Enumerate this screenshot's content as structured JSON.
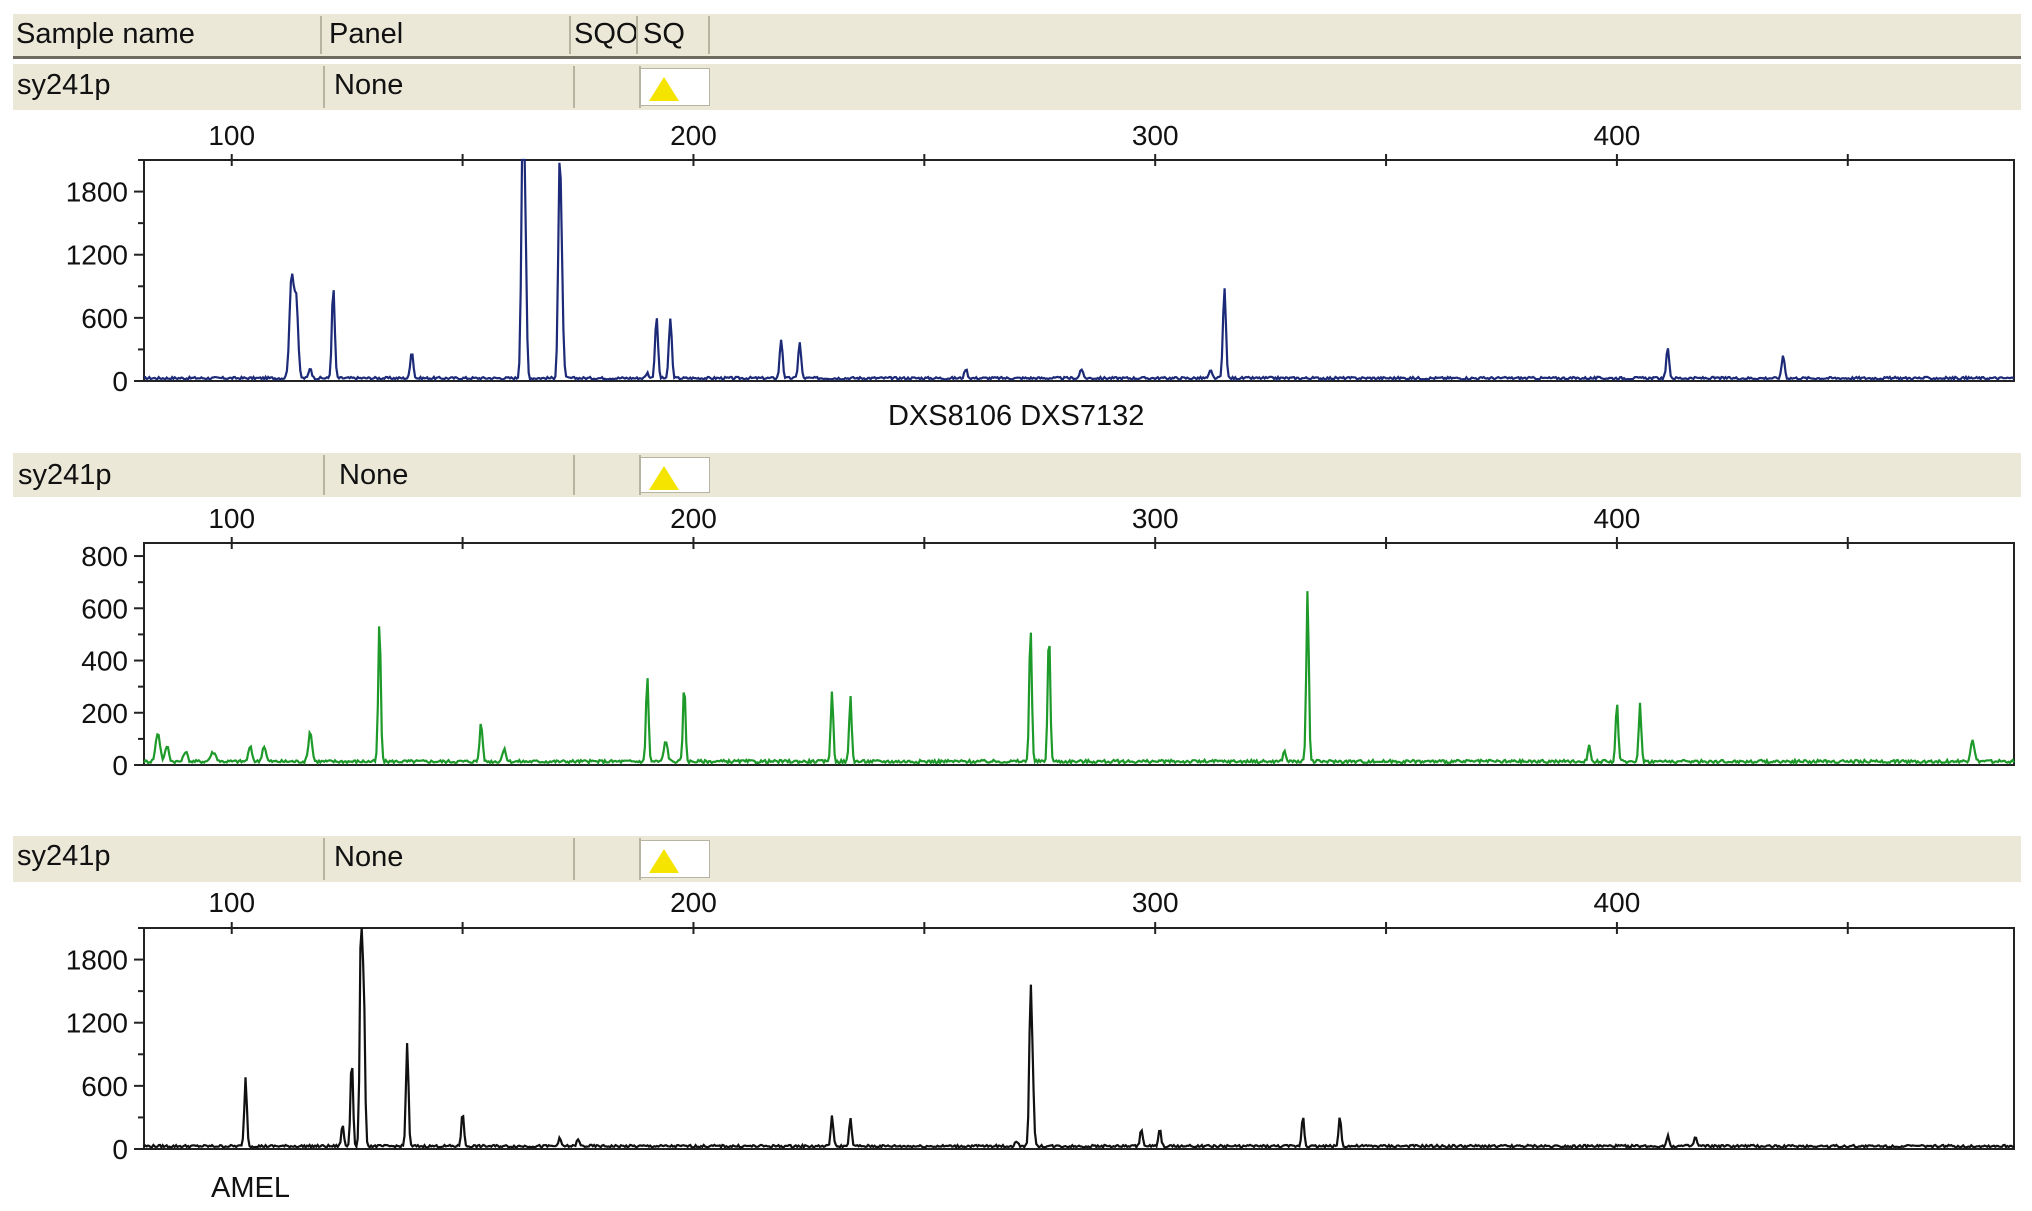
{
  "header": {
    "columns": [
      "Sample name",
      "Panel",
      "SQO",
      "SQ"
    ]
  },
  "panels": [
    {
      "sample_name": "sy241p",
      "panel": "None",
      "sq_icon": "warning-triangle-icon",
      "marker_labels": "DXS8106 DXS7132",
      "color": "#1c2a78"
    },
    {
      "sample_name": "sy241p",
      "panel": "None",
      "sq_icon": "warning-triangle-icon",
      "marker_labels": "",
      "color": "#1e9a2a"
    },
    {
      "sample_name": "sy241p",
      "panel": "None",
      "sq_icon": "warning-triangle-icon",
      "marker_labels": "AMEL",
      "color": "#111111"
    }
  ],
  "colors": {
    "header_bg": "#ece8d8",
    "sq_icon": "#f5e400"
  },
  "chart_data": [
    {
      "type": "line",
      "xlabel": "",
      "ylabel": "",
      "xlim": [
        81,
        486
      ],
      "ylim": [
        0,
        2100
      ],
      "x_ticks": [
        100,
        200,
        300,
        400
      ],
      "y_ticks": [
        0,
        600,
        1200,
        1800
      ],
      "grid": false,
      "baseline": 30,
      "series": [
        {
          "peaks": [
            {
              "x": 113,
              "y": 980,
              "w": 1.2
            },
            {
              "x": 114,
              "y": 700,
              "w": 1.0
            },
            {
              "x": 117,
              "y": 100,
              "w": 0.8
            },
            {
              "x": 122,
              "y": 860,
              "w": 0.8
            },
            {
              "x": 139,
              "y": 260,
              "w": 0.8
            },
            {
              "x": 163,
              "y": 2080,
              "w": 0.8
            },
            {
              "x": 163.5,
              "y": 1500,
              "w": 0.8
            },
            {
              "x": 171,
              "y": 1880,
              "w": 0.8
            },
            {
              "x": 171.5,
              "y": 750,
              "w": 0.8
            },
            {
              "x": 190,
              "y": 50,
              "w": 0.8
            },
            {
              "x": 192,
              "y": 580,
              "w": 0.8
            },
            {
              "x": 195,
              "y": 570,
              "w": 0.8
            },
            {
              "x": 219,
              "y": 370,
              "w": 0.8
            },
            {
              "x": 223,
              "y": 340,
              "w": 0.8
            },
            {
              "x": 259,
              "y": 90,
              "w": 0.8
            },
            {
              "x": 284,
              "y": 90,
              "w": 0.8
            },
            {
              "x": 312,
              "y": 70,
              "w": 0.8
            },
            {
              "x": 315,
              "y": 870,
              "w": 0.8
            },
            {
              "x": 411,
              "y": 280,
              "w": 0.8
            },
            {
              "x": 436,
              "y": 220,
              "w": 0.8
            }
          ]
        }
      ]
    },
    {
      "type": "line",
      "xlabel": "",
      "ylabel": "",
      "xlim": [
        81,
        486
      ],
      "ylim": [
        0,
        850
      ],
      "x_ticks": [
        100,
        200,
        300,
        400
      ],
      "y_ticks": [
        0,
        200,
        400,
        600,
        800
      ],
      "grid": false,
      "baseline": 15,
      "series": [
        {
          "peaks": [
            {
              "x": 84,
              "y": 110,
              "w": 1.2
            },
            {
              "x": 86,
              "y": 60,
              "w": 1.0
            },
            {
              "x": 90,
              "y": 40,
              "w": 1.0
            },
            {
              "x": 96,
              "y": 35,
              "w": 1.5
            },
            {
              "x": 104,
              "y": 55,
              "w": 1.0
            },
            {
              "x": 107,
              "y": 60,
              "w": 1.0
            },
            {
              "x": 117,
              "y": 115,
              "w": 1.0
            },
            {
              "x": 132,
              "y": 540,
              "w": 0.7
            },
            {
              "x": 154,
              "y": 150,
              "w": 0.8
            },
            {
              "x": 159,
              "y": 45,
              "w": 1.0
            },
            {
              "x": 190,
              "y": 330,
              "w": 0.7
            },
            {
              "x": 194,
              "y": 80,
              "w": 1.0
            },
            {
              "x": 198,
              "y": 290,
              "w": 0.7
            },
            {
              "x": 230,
              "y": 270,
              "w": 0.7
            },
            {
              "x": 234,
              "y": 250,
              "w": 0.7
            },
            {
              "x": 273,
              "y": 520,
              "w": 0.7
            },
            {
              "x": 277,
              "y": 500,
              "w": 0.7
            },
            {
              "x": 328,
              "y": 40,
              "w": 0.8
            },
            {
              "x": 333,
              "y": 660,
              "w": 0.7
            },
            {
              "x": 394,
              "y": 60,
              "w": 0.8
            },
            {
              "x": 400,
              "y": 230,
              "w": 0.7
            },
            {
              "x": 405,
              "y": 225,
              "w": 0.7
            },
            {
              "x": 477,
              "y": 85,
              "w": 1.0
            }
          ]
        }
      ]
    },
    {
      "type": "line",
      "xlabel": "",
      "ylabel": "",
      "xlim": [
        81,
        486
      ],
      "ylim": [
        0,
        2100
      ],
      "x_ticks": [
        100,
        200,
        300,
        400
      ],
      "y_ticks": [
        0,
        600,
        1200,
        1800
      ],
      "grid": false,
      "baseline": 30,
      "series": [
        {
          "peaks": [
            {
              "x": 103,
              "y": 650,
              "w": 0.7
            },
            {
              "x": 124,
              "y": 200,
              "w": 0.7
            },
            {
              "x": 126,
              "y": 840,
              "w": 0.7
            },
            {
              "x": 128,
              "y": 2080,
              "w": 0.7
            },
            {
              "x": 128.6,
              "y": 1400,
              "w": 0.7
            },
            {
              "x": 138,
              "y": 980,
              "w": 0.7
            },
            {
              "x": 150,
              "y": 330,
              "w": 0.7
            },
            {
              "x": 171,
              "y": 70,
              "w": 0.8
            },
            {
              "x": 175,
              "y": 60,
              "w": 0.8
            },
            {
              "x": 230,
              "y": 290,
              "w": 0.7
            },
            {
              "x": 234,
              "y": 260,
              "w": 0.7
            },
            {
              "x": 270,
              "y": 50,
              "w": 0.8
            },
            {
              "x": 273,
              "y": 1420,
              "w": 0.7
            },
            {
              "x": 273.5,
              "y": 550,
              "w": 0.7
            },
            {
              "x": 297,
              "y": 170,
              "w": 0.7
            },
            {
              "x": 301,
              "y": 160,
              "w": 0.7
            },
            {
              "x": 332,
              "y": 290,
              "w": 0.7
            },
            {
              "x": 340,
              "y": 280,
              "w": 0.7
            },
            {
              "x": 411,
              "y": 100,
              "w": 0.7
            },
            {
              "x": 417,
              "y": 90,
              "w": 0.7
            }
          ]
        }
      ]
    }
  ]
}
